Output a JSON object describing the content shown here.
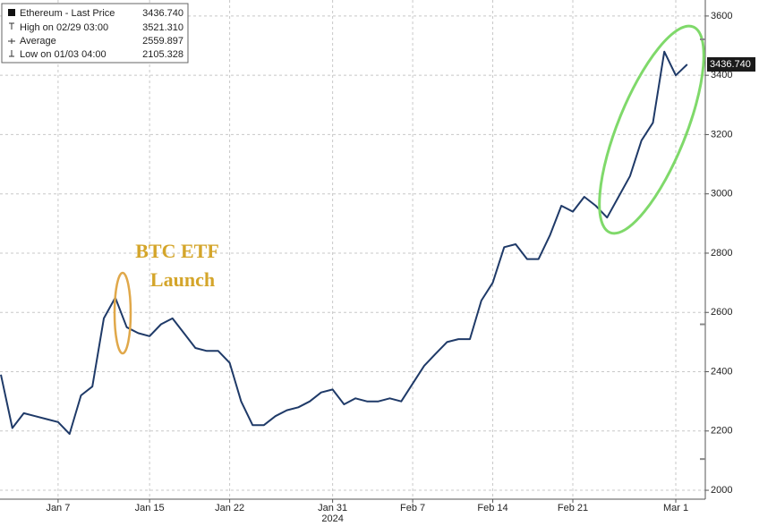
{
  "chart_data": {
    "type": "line",
    "categories": [
      null,
      null,
      null,
      null,
      null,
      "Jan 7",
      null,
      null,
      null,
      null,
      null,
      null,
      null,
      "Jan 15",
      null,
      null,
      null,
      null,
      null,
      null,
      "Jan 22",
      null,
      null,
      null,
      null,
      null,
      null,
      null,
      null,
      "Jan 31",
      null,
      null,
      null,
      null,
      null,
      null,
      "Feb 7",
      null,
      null,
      null,
      null,
      null,
      null,
      "Feb 14",
      null,
      null,
      null,
      null,
      null,
      null,
      "Feb 21",
      null,
      null,
      null,
      null,
      null,
      null,
      null,
      null,
      "Mar 1",
      null
    ],
    "x_sublabel": "2024",
    "series": [
      {
        "name": "Ethereum - Last Price",
        "color": "#1f3a68",
        "last_label": "3436.740",
        "values": [
          2390,
          2210,
          2260,
          2250,
          2240,
          2230,
          2190,
          2320,
          2350,
          2580,
          2650,
          2550,
          2530,
          2520,
          2560,
          2580,
          2530,
          2480,
          2470,
          2470,
          2430,
          2300,
          2220,
          2220,
          2250,
          2270,
          2280,
          2300,
          2330,
          2340,
          2290,
          2310,
          2300,
          2300,
          2310,
          2300,
          2360,
          2420,
          2460,
          2500,
          2510,
          2510,
          2640,
          2700,
          2820,
          2830,
          2780,
          2780,
          2860,
          2960,
          2940,
          2990,
          2960,
          2920,
          2990,
          3060,
          3180,
          3240,
          3480,
          3400,
          3436.74
        ]
      }
    ],
    "stats": [
      {
        "name": "High on 02/29 03:00",
        "value": 3521.31,
        "value_label": "3521.310"
      },
      {
        "name": "Average",
        "value": 2559.897,
        "value_label": "2559.897"
      },
      {
        "name": "Low on 01/03 04:00",
        "value": 2105.328,
        "value_label": "2105.328"
      }
    ],
    "annotations": [
      {
        "lines": [
          "BTC ETF",
          "Launch"
        ],
        "color": "#d4a52a"
      }
    ],
    "ylim": [
      1970,
      3654
    ],
    "yticks": [
      2000,
      2200,
      2400,
      2600,
      2800,
      3000,
      3200,
      3400,
      3600
    ],
    "grid": true
  }
}
